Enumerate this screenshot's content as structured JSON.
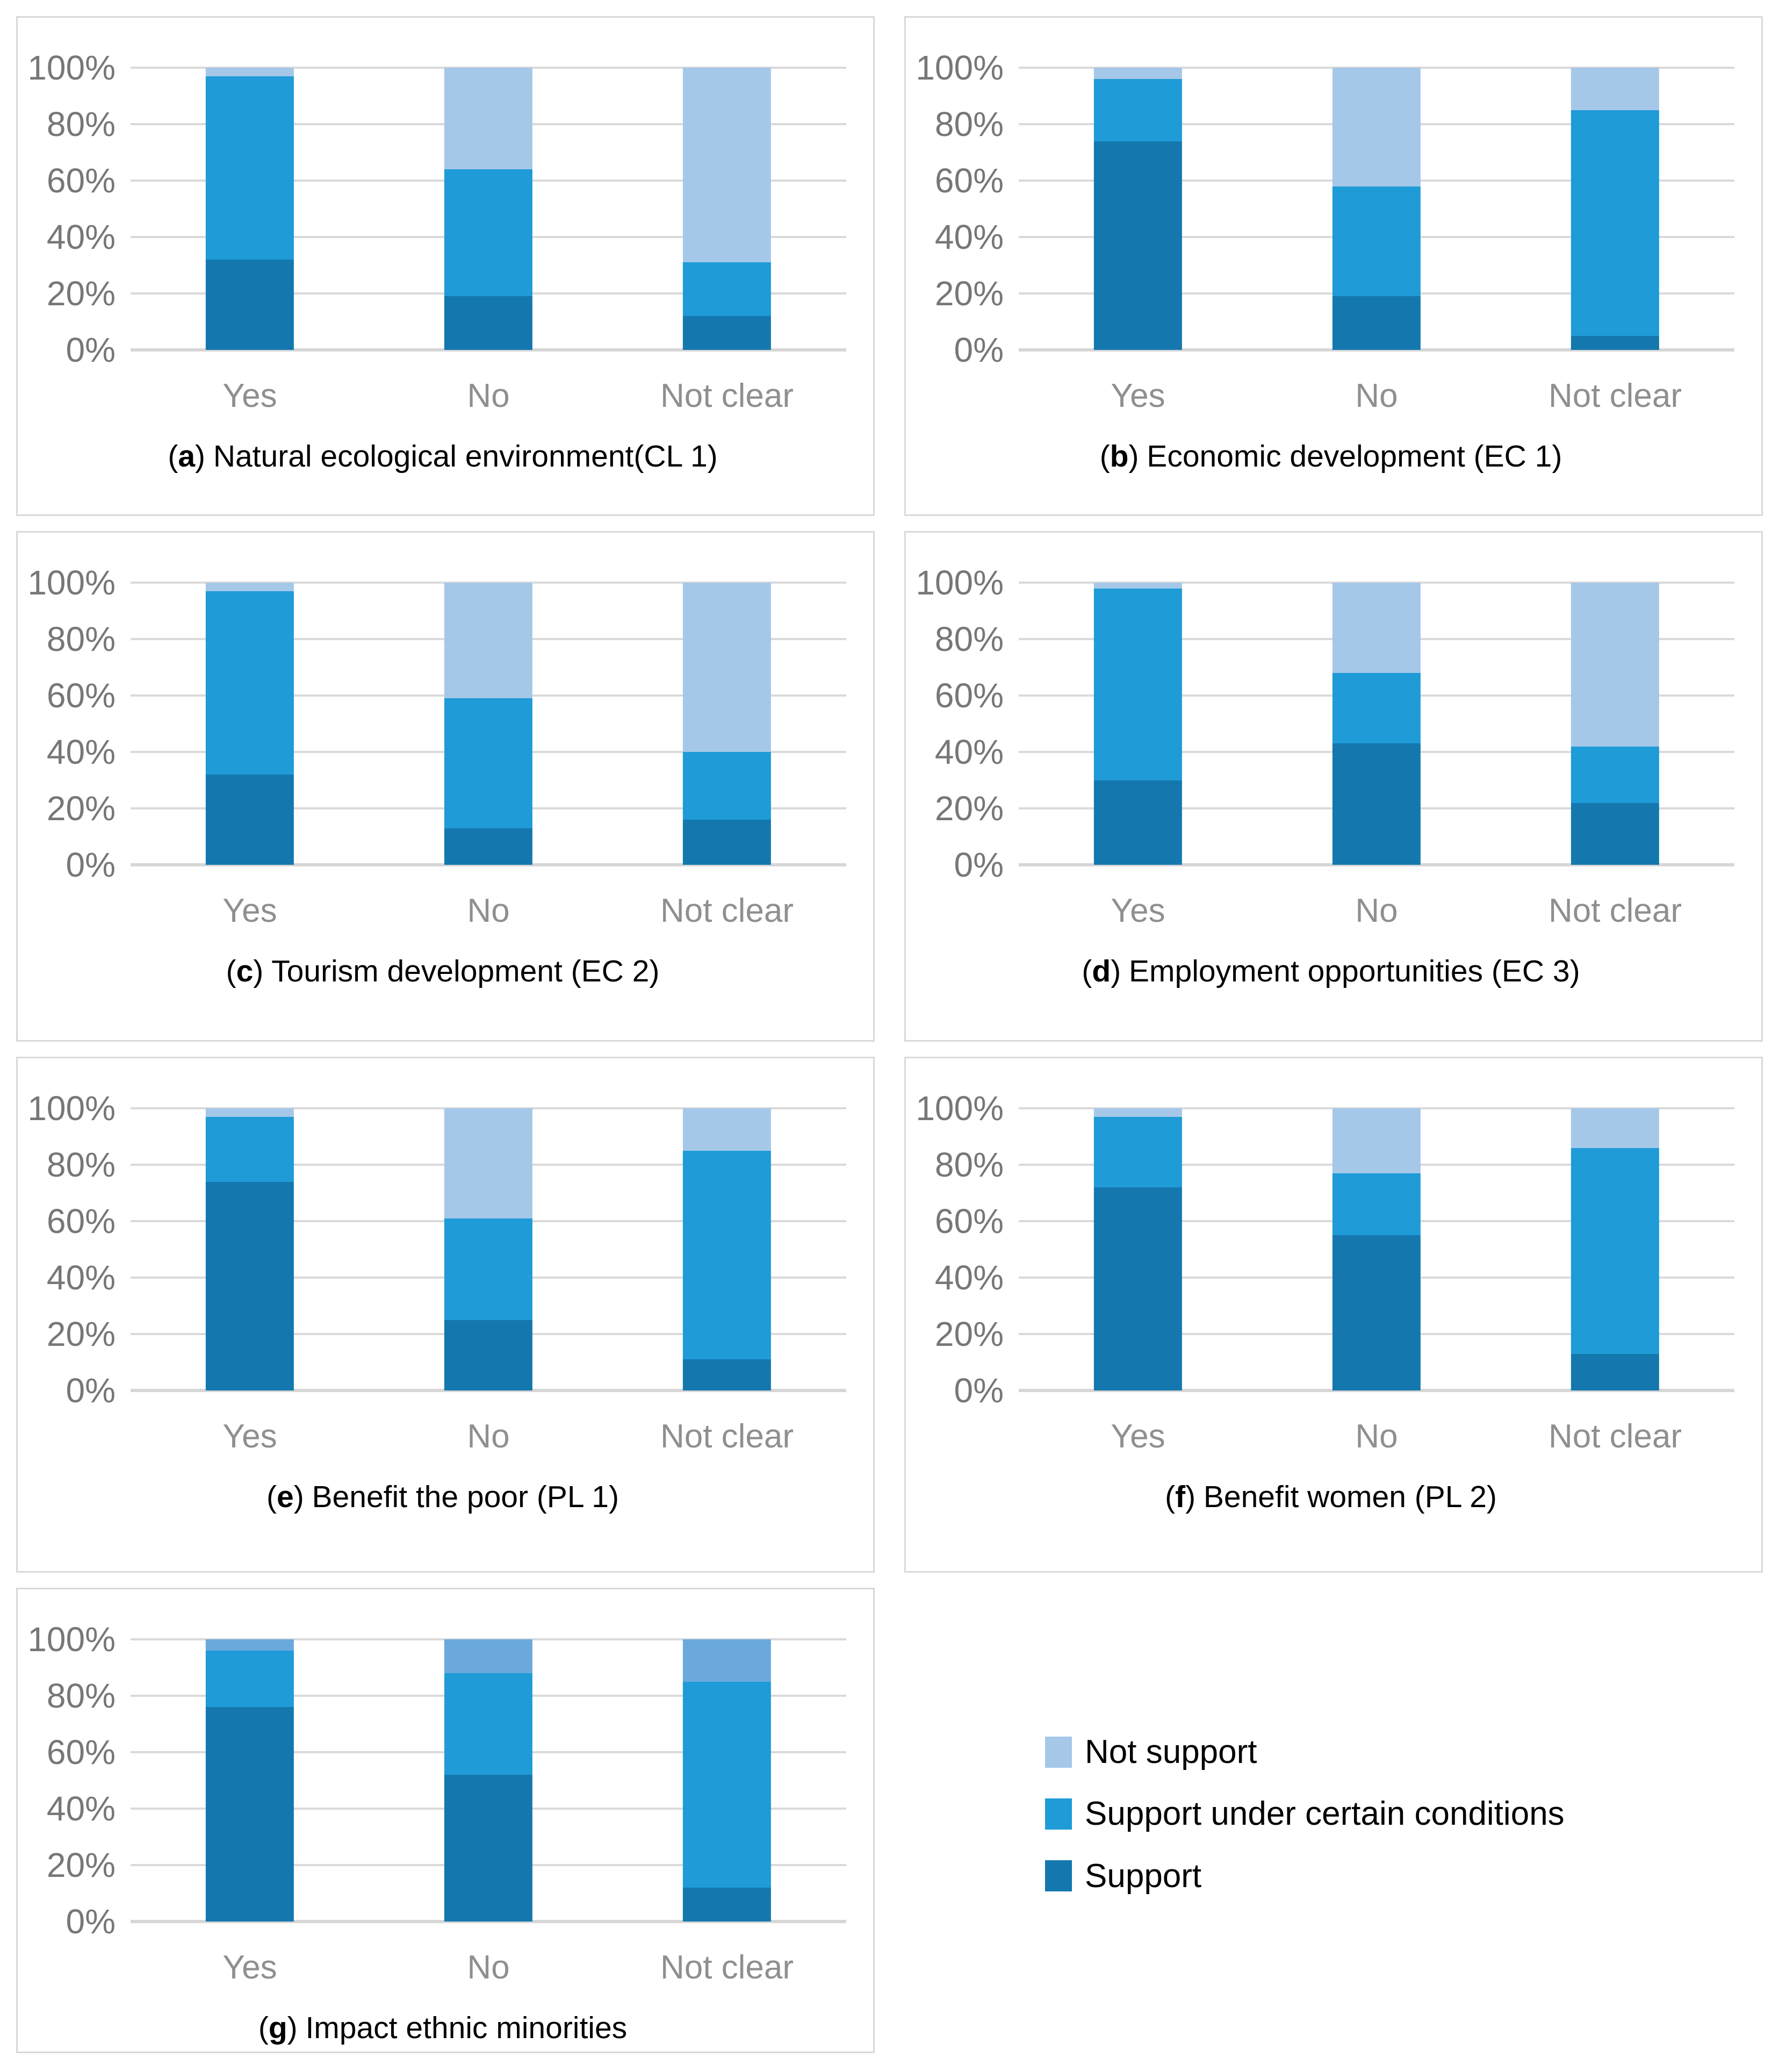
{
  "strings": {
    "open_paren": "(",
    "close_paren": ")"
  },
  "colors": {
    "support": "#1478AF",
    "support_under_certain_conditions": "#1F9BD7",
    "not_support": "#A5C8E9",
    "not_support_alt": "#6BA9DD",
    "gridline": "#DADADA",
    "panel_border": "#D9D9D9",
    "tick_text": "#777777",
    "category_text": "#8F8F8F"
  },
  "axis": {
    "ticks": [
      "100%",
      "80%",
      "60%",
      "40%",
      "20%",
      "0%"
    ],
    "tick_values": [
      100,
      80,
      60,
      40,
      20,
      0
    ]
  },
  "legend": {
    "items": [
      {
        "label": "Not support",
        "color": "#A5C8E9"
      },
      {
        "label": "Support under certain conditions",
        "color": "#1F9BD7"
      },
      {
        "label": "Support",
        "color": "#1478AF"
      }
    ]
  },
  "chart_data": [
    {
      "type": "bar",
      "stacked": true,
      "units": "percent",
      "ylim": [
        0,
        100
      ],
      "letter": "a",
      "title": "Natural ecological environment(CL 1)",
      "categories": [
        "Yes",
        "No",
        "Not clear"
      ],
      "series": [
        {
          "name": "Support",
          "color": "#1478AF",
          "values": [
            32,
            19,
            12
          ]
        },
        {
          "name": "Support under certain conditions",
          "color": "#1F9BD7",
          "values": [
            65,
            45,
            19
          ]
        },
        {
          "name": "Not support",
          "color": "#A5C8E9",
          "values": [
            3,
            36,
            69
          ]
        }
      ]
    },
    {
      "type": "bar",
      "stacked": true,
      "units": "percent",
      "ylim": [
        0,
        100
      ],
      "letter": "b",
      "title": "Economic development (EC 1)",
      "categories": [
        "Yes",
        "No",
        "Not clear"
      ],
      "series": [
        {
          "name": "Support",
          "color": "#1478AF",
          "values": [
            74,
            19,
            5
          ]
        },
        {
          "name": "Support under certain conditions",
          "color": "#1F9BD7",
          "values": [
            22,
            39,
            80
          ]
        },
        {
          "name": "Not support",
          "color": "#A5C8E9",
          "values": [
            4,
            42,
            15
          ]
        }
      ]
    },
    {
      "type": "bar",
      "stacked": true,
      "units": "percent",
      "ylim": [
        0,
        100
      ],
      "letter": "c",
      "title": "Tourism development (EC 2)",
      "categories": [
        "Yes",
        "No",
        "Not clear"
      ],
      "series": [
        {
          "name": "Support",
          "color": "#1478AF",
          "values": [
            32,
            13,
            16
          ]
        },
        {
          "name": "Support under certain conditions",
          "color": "#1F9BD7",
          "values": [
            65,
            46,
            24
          ]
        },
        {
          "name": "Not support",
          "color": "#A5C8E9",
          "values": [
            3,
            41,
            60
          ]
        }
      ]
    },
    {
      "type": "bar",
      "stacked": true,
      "units": "percent",
      "ylim": [
        0,
        100
      ],
      "letter": "d",
      "title": "Employment opportunities (EC 3)",
      "categories": [
        "Yes",
        "No",
        "Not clear"
      ],
      "series": [
        {
          "name": "Support",
          "color": "#1478AF",
          "values": [
            30,
            43,
            22
          ]
        },
        {
          "name": "Support under certain conditions",
          "color": "#1F9BD7",
          "values": [
            68,
            25,
            20
          ]
        },
        {
          "name": "Not support",
          "color": "#A5C8E9",
          "values": [
            2,
            32,
            58
          ]
        }
      ]
    },
    {
      "type": "bar",
      "stacked": true,
      "units": "percent",
      "ylim": [
        0,
        100
      ],
      "letter": "e",
      "title": "Benefit the poor (PL 1)",
      "categories": [
        "Yes",
        "No",
        "Not clear"
      ],
      "series": [
        {
          "name": "Support",
          "color": "#1478AF",
          "values": [
            74,
            25,
            11
          ]
        },
        {
          "name": "Support under certain conditions",
          "color": "#1F9BD7",
          "values": [
            23,
            36,
            74
          ]
        },
        {
          "name": "Not support",
          "color": "#A5C8E9",
          "values": [
            3,
            39,
            15
          ]
        }
      ]
    },
    {
      "type": "bar",
      "stacked": true,
      "units": "percent",
      "ylim": [
        0,
        100
      ],
      "letter": "f",
      "title": "Benefit women (PL 2)",
      "categories": [
        "Yes",
        "No",
        "Not clear"
      ],
      "series": [
        {
          "name": "Support",
          "color": "#1478AF",
          "values": [
            72,
            55,
            13
          ]
        },
        {
          "name": "Support under certain conditions",
          "color": "#1F9BD7",
          "values": [
            25,
            22,
            73
          ]
        },
        {
          "name": "Not support",
          "color": "#A5C8E9",
          "values": [
            3,
            23,
            14
          ]
        }
      ]
    },
    {
      "type": "bar",
      "stacked": true,
      "units": "percent",
      "ylim": [
        0,
        100
      ],
      "letter": "g",
      "title": "Impact ethnic minorities",
      "categories": [
        "Yes",
        "No",
        "Not clear"
      ],
      "series": [
        {
          "name": "Support",
          "color": "#1478AF",
          "values": [
            76,
            52,
            12
          ]
        },
        {
          "name": "Support under certain conditions",
          "color": "#1F9BD7",
          "values": [
            20,
            36,
            73
          ]
        },
        {
          "name": "Not support",
          "color": "#6BA9DD",
          "values": [
            4,
            12,
            15
          ]
        }
      ]
    }
  ]
}
